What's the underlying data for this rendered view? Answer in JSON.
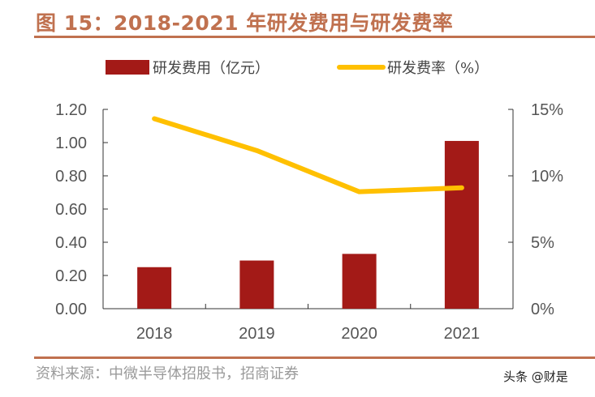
{
  "title": "图 15：2018-2021 年研发费用与研发费率",
  "source": "资料来源：中微半导体招股书，招商证券",
  "watermark": "头条 @财是",
  "colors": {
    "title": "#c0714f",
    "bar": "#a31a17",
    "line": "#ffc000"
  },
  "chart_data": {
    "type": "bar+line",
    "categories": [
      "2018",
      "2019",
      "2020",
      "2021"
    ],
    "series": [
      {
        "name": "研发费用（亿元）",
        "type": "bar",
        "axis": "left",
        "values": [
          0.25,
          0.29,
          0.33,
          1.01
        ]
      },
      {
        "name": "研发费率（%）",
        "type": "line",
        "axis": "right",
        "values": [
          14.3,
          11.9,
          8.8,
          9.1
        ]
      }
    ],
    "y_left": {
      "lim": [
        0,
        1.2
      ],
      "ticks": [
        "0.00",
        "0.20",
        "0.40",
        "0.60",
        "0.80",
        "1.00",
        "1.20"
      ]
    },
    "y_right": {
      "lim": [
        0,
        15
      ],
      "ticks": [
        "0%",
        "5%",
        "10%",
        "15%"
      ]
    },
    "grid": false,
    "legend": "top"
  }
}
